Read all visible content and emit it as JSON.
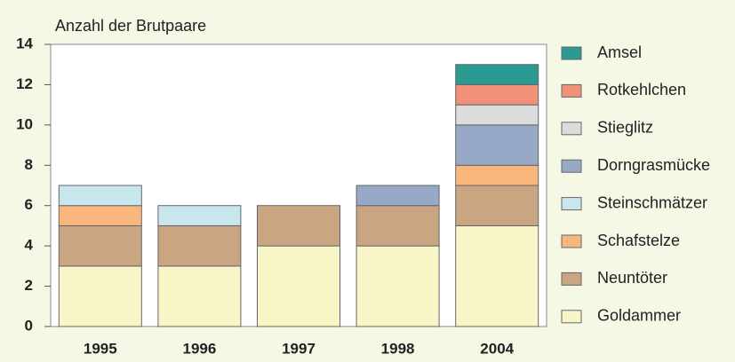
{
  "chart_data": {
    "type": "stacked_bar",
    "title": "Anzahl der Brutpaare",
    "categories": [
      "1995",
      "1996",
      "1997",
      "1998",
      "2004"
    ],
    "series": [
      {
        "name": "Goldammer",
        "color": "#f8f5c6",
        "values": [
          3,
          3,
          4,
          4,
          5
        ]
      },
      {
        "name": "Neuntöter",
        "color": "#c9a582",
        "values": [
          2,
          2,
          2,
          2,
          2
        ]
      },
      {
        "name": "Schafstelze",
        "color": "#f9b77e",
        "values": [
          1,
          0,
          0,
          0,
          1
        ]
      },
      {
        "name": "Steinschmätzer",
        "color": "#c8e6ee",
        "values": [
          1,
          1,
          0,
          0,
          0
        ]
      },
      {
        "name": "Dorngrasmücke",
        "color": "#97a9c7",
        "values": [
          0,
          0,
          0,
          1,
          2
        ]
      },
      {
        "name": "Stieglitz",
        "color": "#dcdcdc",
        "values": [
          0,
          0,
          0,
          0,
          1
        ]
      },
      {
        "name": "Rotkehlchen",
        "color": "#f2917a",
        "values": [
          0,
          0,
          0,
          0,
          1
        ]
      },
      {
        "name": "Amsel",
        "color": "#2a9a93",
        "values": [
          0,
          0,
          0,
          0,
          1
        ]
      }
    ],
    "ylim": [
      0,
      14
    ],
    "yticks": [
      0,
      2,
      4,
      6,
      8,
      10,
      12,
      14
    ],
    "legend": "right"
  }
}
